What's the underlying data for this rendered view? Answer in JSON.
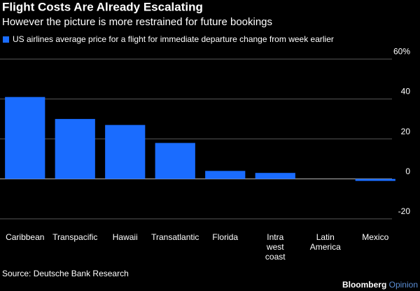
{
  "chart_data": {
    "type": "bar",
    "title": "Flight Costs Are Already Escalating",
    "subtitle": "However the picture is more restrained for future bookings",
    "legend": "US airlines average price for a flight for immediate departure change from week earlier",
    "categories": [
      "Caribbean",
      "Transpacific",
      "Hawaii",
      "Transatlantic",
      "Florida",
      "Intra west coast",
      "Latin America",
      "Mexico"
    ],
    "values": [
      41,
      30,
      27,
      18,
      4,
      3,
      0,
      -1
    ],
    "color": "#1a6cff",
    "ylim": [
      -26,
      64
    ],
    "yticks": [
      -20,
      0,
      20,
      40,
      {
        "value": 60,
        "label": "60%"
      }
    ],
    "grid": true,
    "source": "Source: Deutsche Bank Research"
  },
  "brand": {
    "name": "Bloomberg",
    "section": "Opinion"
  }
}
